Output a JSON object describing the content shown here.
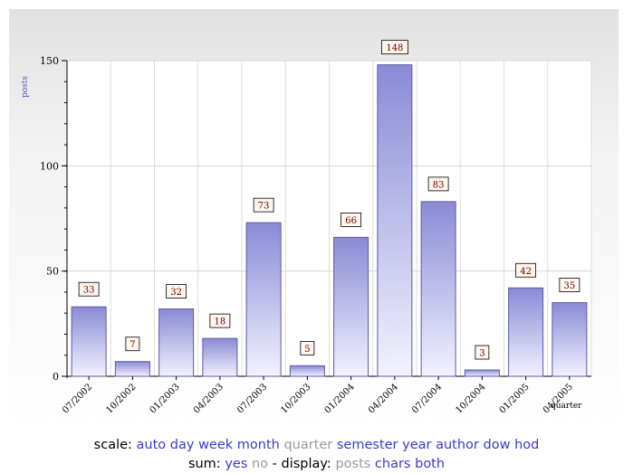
{
  "chart_data": {
    "type": "bar",
    "categories": [
      "07/2002",
      "10/2002",
      "01/2003",
      "04/2003",
      "07/2003",
      "10/2003",
      "01/2004",
      "04/2004",
      "07/2004",
      "10/2004",
      "01/2005",
      "04/2005"
    ],
    "values": [
      33,
      7,
      32,
      18,
      73,
      5,
      66,
      148,
      83,
      3,
      42,
      35
    ],
    "data_labels": [
      "33",
      "7",
      "32",
      "18",
      "73",
      "5",
      "66",
      "148",
      "83",
      "3",
      "42",
      "35"
    ],
    "title": "",
    "xlabel": "quarter",
    "ylabel": "posts",
    "ylim": [
      0,
      150
    ],
    "yticks": [
      "0",
      "50",
      "100",
      "150"
    ],
    "grid": true,
    "bar_color_top": "#8a8ad6",
    "bar_color_bottom": "#f2f2ff",
    "bar_edge_color": "#5a5aa8"
  },
  "controls": {
    "scale_label": "scale:",
    "scale_options": [
      {
        "label": "auto",
        "current": false
      },
      {
        "label": "day",
        "current": false
      },
      {
        "label": "week",
        "current": false
      },
      {
        "label": "month",
        "current": false
      },
      {
        "label": "quarter",
        "current": true
      },
      {
        "label": "semester",
        "current": false
      },
      {
        "label": "year",
        "current": false
      },
      {
        "label": "author",
        "current": false
      },
      {
        "label": "dow",
        "current": false
      },
      {
        "label": "hod",
        "current": false
      }
    ],
    "sum_label": "sum:",
    "sum_options": [
      {
        "label": "yes",
        "current": false
      },
      {
        "label": "no",
        "current": true
      }
    ],
    "separator": "-",
    "display_label": "display:",
    "display_options": [
      {
        "label": "posts",
        "current": true
      },
      {
        "label": "chars",
        "current": false
      },
      {
        "label": "both",
        "current": false
      }
    ]
  }
}
